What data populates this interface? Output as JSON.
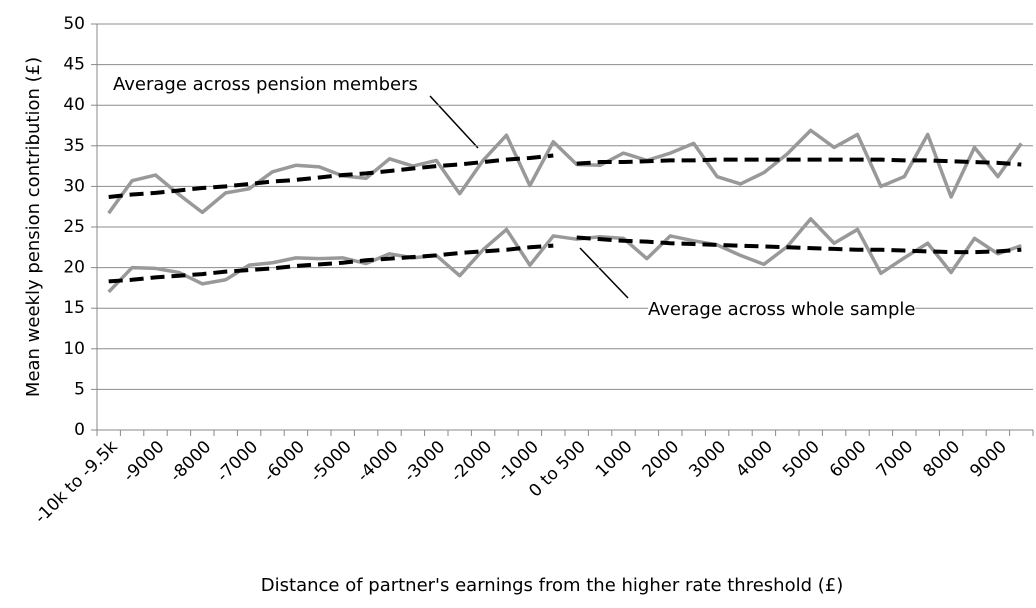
{
  "chart_data": {
    "type": "line",
    "y_label": "Mean weekly pension contribution (£)",
    "x_label": "Distance of partner's earnings from the higher rate threshold (£)",
    "annotations": [
      "Average across pension members",
      "Average across whole sample"
    ],
    "categories": [
      "-10k to -9.5k",
      null,
      "-9000",
      null,
      "-8000",
      null,
      "-7000",
      null,
      "-6000",
      null,
      "-5000",
      null,
      "-4000",
      null,
      "-3000",
      null,
      "-2000",
      null,
      "-1000",
      null,
      "0 to 500",
      null,
      "1000",
      null,
      "2000",
      null,
      "3000",
      null,
      "4000",
      null,
      "5000",
      null,
      "6000",
      null,
      "7000",
      null,
      "8000",
      null,
      "9000",
      null
    ],
    "ylim": [
      0,
      50
    ],
    "yticks": [
      0,
      5,
      10,
      15,
      20,
      25,
      30,
      35,
      40,
      45,
      50
    ],
    "grid": true,
    "series": [
      {
        "color": "#999999",
        "style": "solid",
        "values": [
          26.7,
          30.7,
          31.4,
          29,
          26.8,
          29.2,
          29.7,
          31.8,
          32.6,
          32.4,
          31.3,
          31,
          33.4,
          32.5,
          33.2,
          29.1,
          33.2,
          36.3,
          30.1,
          35.5,
          32.7,
          32.6,
          34.1,
          33.2,
          34.1,
          35.3,
          31.2,
          30.3,
          31.7,
          34,
          36.9,
          34.8,
          36.4,
          30,
          31.2,
          36.4,
          28.7,
          34.8,
          31.2,
          35.3
        ]
      },
      {
        "color": "#999999",
        "style": "solid",
        "values": [
          17,
          20,
          19.9,
          19.4,
          18,
          18.5,
          20.3,
          20.6,
          21.2,
          21.1,
          21.2,
          20.5,
          21.7,
          21.2,
          21.5,
          19,
          22.2,
          24.7,
          20.3,
          23.9,
          23.5,
          23.8,
          23.6,
          21.1,
          23.9,
          23.3,
          22.8,
          21.5,
          20.4,
          22.6,
          26,
          23,
          24.7,
          19.3,
          21.2,
          23,
          19.4,
          23.6,
          21.7,
          22.7
        ]
      },
      {
        "color": "#000000",
        "style": "dashed",
        "values": [
          28.7,
          29.0,
          29.2,
          29.5,
          29.8,
          30.0,
          30.3,
          30.6,
          30.8,
          31.1,
          31.4,
          31.6,
          31.9,
          32.2,
          32.5,
          32.7,
          33.0,
          33.3,
          33.5,
          33.8,
          null,
          null,
          null,
          null,
          null,
          null,
          null,
          null,
          null,
          null,
          null,
          null,
          null,
          null,
          null,
          null,
          null,
          null,
          null,
          null
        ]
      },
      {
        "color": "#000000",
        "style": "dashed",
        "values": [
          null,
          null,
          null,
          null,
          null,
          null,
          null,
          null,
          null,
          null,
          null,
          null,
          null,
          null,
          null,
          null,
          null,
          null,
          null,
          null,
          32.8,
          33.0,
          33.0,
          33.1,
          33.2,
          33.2,
          33.3,
          33.3,
          33.3,
          33.3,
          33.3,
          33.3,
          33.3,
          33.3,
          33.2,
          33.2,
          33.1,
          33.0,
          32.9,
          32.7
        ]
      },
      {
        "color": "#000000",
        "style": "dashed",
        "values": [
          18.3,
          18.5,
          18.8,
          19.0,
          19.2,
          19.5,
          19.7,
          19.9,
          20.2,
          20.4,
          20.6,
          20.9,
          21.1,
          21.3,
          21.5,
          21.8,
          22.0,
          22.2,
          22.5,
          22.7,
          null,
          null,
          null,
          null,
          null,
          null,
          null,
          null,
          null,
          null,
          null,
          null,
          null,
          null,
          null,
          null,
          null,
          null,
          null,
          null
        ]
      },
      {
        "color": "#000000",
        "style": "dashed",
        "values": [
          null,
          null,
          null,
          null,
          null,
          null,
          null,
          null,
          null,
          null,
          null,
          null,
          null,
          null,
          null,
          null,
          null,
          null,
          null,
          null,
          23.7,
          23.5,
          23.3,
          23.2,
          23.0,
          22.9,
          22.8,
          22.7,
          22.6,
          22.5,
          22.4,
          22.3,
          22.2,
          22.2,
          22.1,
          22.0,
          21.9,
          21.9,
          22.0,
          22.2
        ]
      }
    ]
  }
}
